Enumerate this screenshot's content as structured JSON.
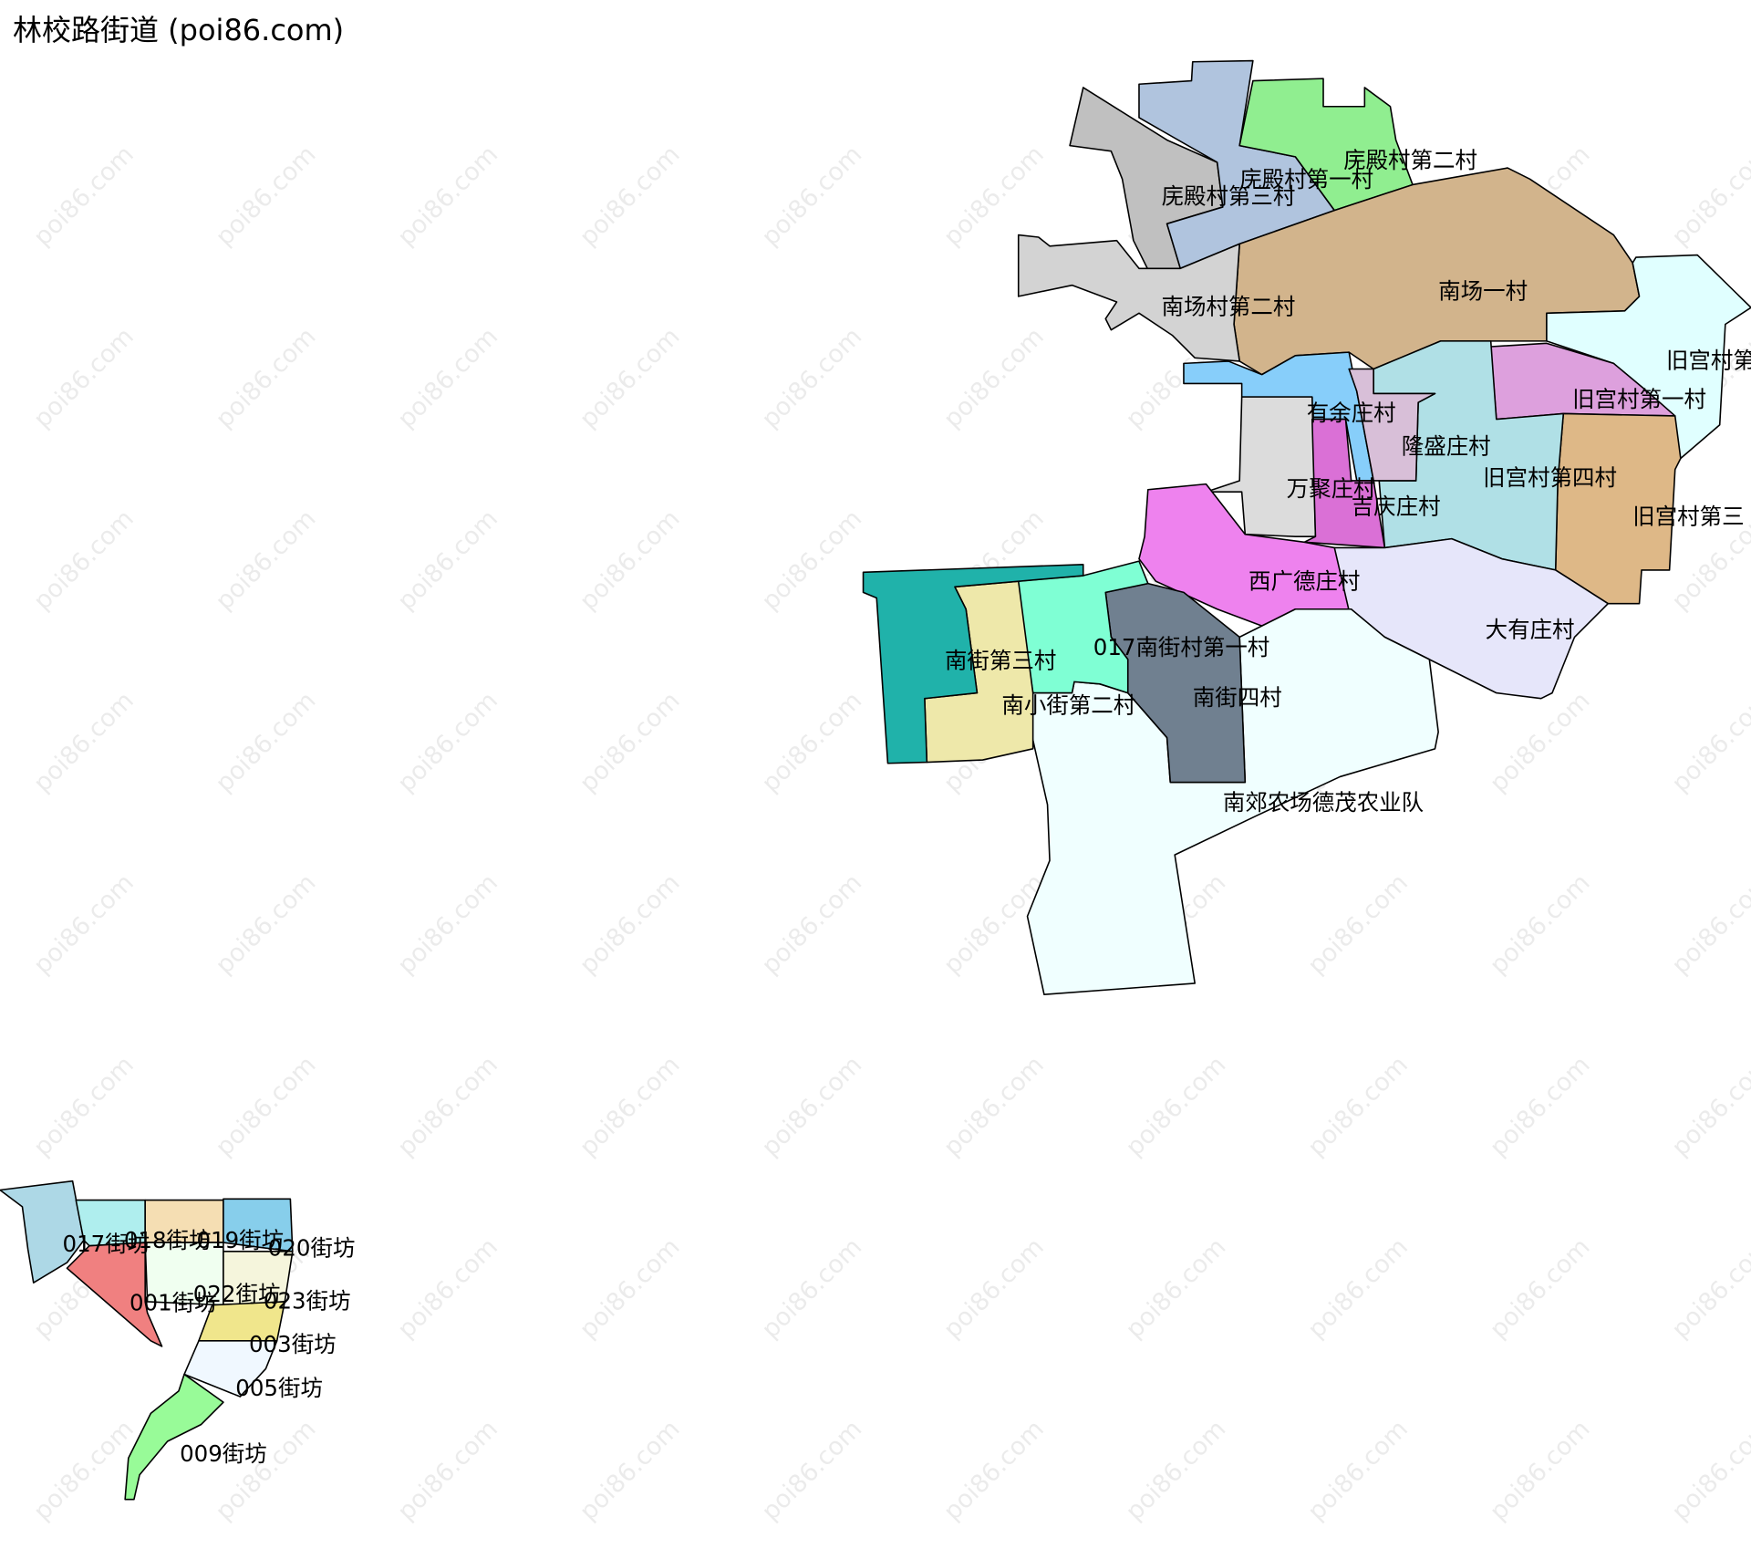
{
  "title": "林校路街道 (poi86.com)",
  "watermark": "poi86.com",
  "regions": [
    {
      "name": "庑殿村第三村",
      "color": "#c0c0c0"
    },
    {
      "name": "庑殿村第一村",
      "color": "#b0c4de"
    },
    {
      "name": "庑殿村第二村",
      "color": "#90ee90"
    },
    {
      "name": "南场一村",
      "color": "#d2b48c"
    },
    {
      "name": "南场村第二村",
      "color": "#d3d3d3"
    },
    {
      "name": "旧宫村第",
      "color": "#e0ffff"
    },
    {
      "name": "旧宫村第一村",
      "color": "#dda0dd"
    },
    {
      "name": "旧宫村第三",
      "color": "#deb887"
    },
    {
      "name": "旧宫村第四村",
      "color": "#b0e0e6"
    },
    {
      "name": "有余庄村",
      "color": "#87cefa"
    },
    {
      "name": "隆盛庄村",
      "color": "#d8bfd8"
    },
    {
      "name": "万聚庄村",
      "color": "#dcdcdc"
    },
    {
      "name": "吉庆庄村",
      "color": "#da70d6"
    },
    {
      "name": "西广德庄村",
      "color": "#ee82ee"
    },
    {
      "name": "大有庄村",
      "color": "#e6e6fa"
    },
    {
      "name": "南郊农场德茂农业队",
      "color": "#f0ffff"
    },
    {
      "name": "南街四村",
      "color": "#708090"
    },
    {
      "name": "017南街村第一村",
      "color": "#7fffd4"
    },
    {
      "name": "南街第三村",
      "color": "#eee8aa"
    },
    {
      "name": "南小街第二村",
      "color": "#20b2aa"
    },
    {
      "name": "017街坊",
      "color": "#add8e6"
    },
    {
      "name": "018街坊",
      "color": "#afeeee"
    },
    {
      "name": "019街坊",
      "color": "#f5deb3"
    },
    {
      "name": "020街坊",
      "color": "#87ceeb"
    },
    {
      "name": "001街坊",
      "color": "#f08080"
    },
    {
      "name": "022街坊",
      "color": "#f0fff0"
    },
    {
      "name": "023街坊",
      "color": "#f5f5dc"
    },
    {
      "name": "003街坊",
      "color": "#f0e68c"
    },
    {
      "name": "005街坊",
      "color": "#f0f8ff"
    },
    {
      "name": "009街坊",
      "color": "#98fb98"
    }
  ]
}
